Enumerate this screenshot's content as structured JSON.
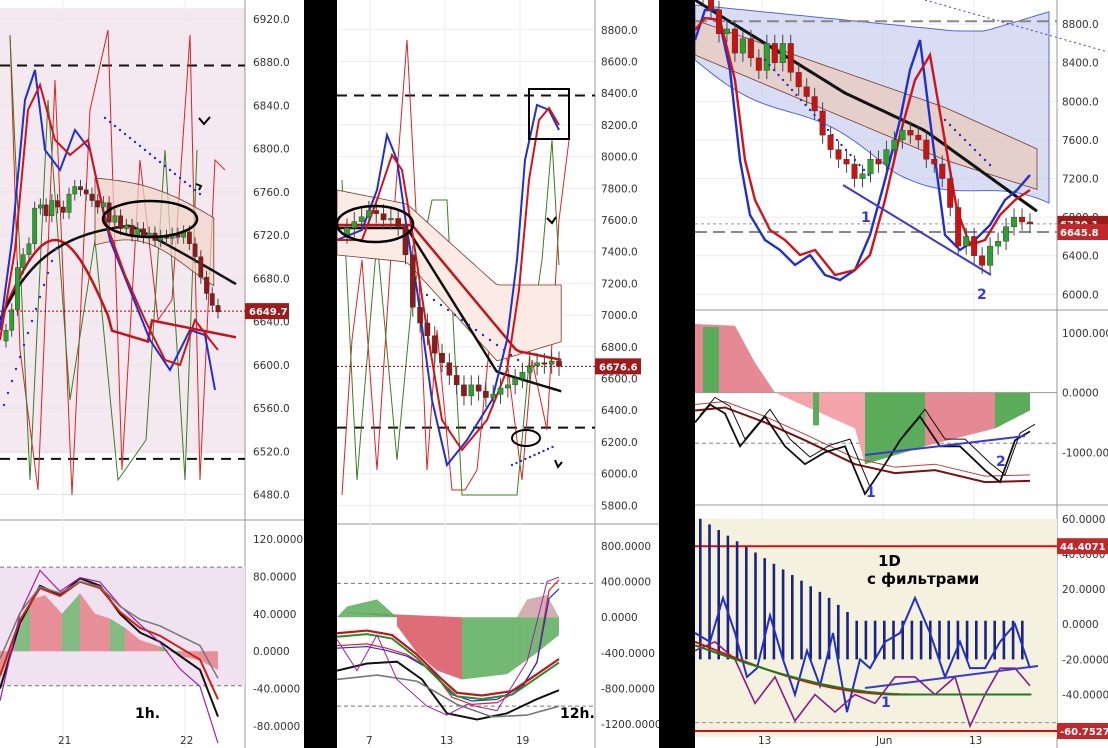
{
  "chart_data": [
    {
      "type": "line",
      "subtitle": "1h.",
      "price_axis": {
        "ticks": [
          6920.0,
          6880.0,
          6840.0,
          6800.0,
          6760.0,
          6720.0,
          6680.0,
          6640.0,
          6600.0,
          6560.0,
          6520.0,
          6480.0
        ],
        "tick_labels": [
          "6920.0",
          "6880.0",
          "6840.0",
          "6800.0",
          "6760.0",
          "6720.0",
          "6680.0",
          "6640.0",
          "6600.0",
          "6560.0",
          "6520.0",
          "6480.0"
        ],
        "ylim": [
          6462,
          6932
        ]
      },
      "current_price": 6649.7,
      "current_price_label": "6649.7",
      "osc_axis": {
        "ticks": [
          120,
          80,
          40,
          0,
          -40,
          -80
        ],
        "tick_labels": [
          "120.0000",
          "80.0000",
          "40.0000",
          "0.0000",
          "-40.0000",
          "-80.0000"
        ],
        "ylim": [
          -95,
          135
        ]
      },
      "x_labels": [
        "21",
        "22"
      ],
      "hlines": [
        6877,
        6513
      ],
      "candles": [
        6632,
        6651,
        6690,
        6702,
        6712,
        6745,
        6748,
        6738,
        6752,
        6746,
        6741,
        6758,
        6765,
        6762,
        6758,
        6752,
        6746,
        6750,
        6732,
        6738,
        6726,
        6729,
        6720,
        6726,
        6718,
        6722,
        6715,
        6719,
        6717,
        6721,
        6718,
        6723,
        6712,
        6700,
        6681,
        6666,
        6655,
        6649
      ],
      "colors": {
        "up": "#2ea02e",
        "down": "#8b1a1a",
        "bg": "#f4e8f1"
      }
    },
    {
      "type": "line",
      "subtitle": "12h.",
      "price_axis": {
        "ticks": [
          8800.0,
          8600.0,
          8400.0,
          8200.0,
          8000.0,
          7800.0,
          7600.0,
          7400.0,
          7200.0,
          7000.0,
          6800.0,
          6600.0,
          6400.0,
          6200.0,
          6000.0,
          5800.0
        ],
        "tick_labels": [
          "8800.0",
          "8600.0",
          "8400.0",
          "8200.0",
          "8000.0",
          "7800.0",
          "7600.0",
          "7400.0",
          "7200.0",
          "7000.0",
          "6800.0",
          "6600.0",
          "6400.0",
          "6200.0",
          "6000.0",
          "5800.0"
        ],
        "ylim": [
          5720,
          8950
        ]
      },
      "current_price": 6676.6,
      "current_price_label": "6676.6",
      "osc_axis": {
        "ticks": [
          800,
          400,
          0,
          -400,
          -800,
          -1200
        ],
        "tick_labels": [
          "800.0000",
          "400.0000",
          "0.0000",
          "-400.0000",
          "-800.0000",
          "-1200.0000"
        ],
        "ylim": [
          -1380,
          980
        ]
      },
      "x_labels": [
        "7",
        "13",
        "19"
      ],
      "hlines": [
        8385,
        6290
      ],
      "candles": [
        7550,
        7590,
        7620,
        7660,
        7640,
        7600,
        7610,
        7560,
        7380,
        7050,
        6950,
        6870,
        6760,
        6700,
        6620,
        6560,
        6490,
        6560,
        6520,
        6480,
        6500,
        6540,
        6560,
        6600,
        6640,
        6680,
        6700,
        6690,
        6710,
        6676
      ],
      "colors": {
        "up": "#2ea02e",
        "down": "#8b1a1a",
        "bg": "#fbebe4"
      }
    },
    {
      "type": "line",
      "subtitle": "1D\nс фильтрами",
      "price_axis": {
        "ticks": [
          8800.0,
          8400.0,
          8000.0,
          7600.0,
          7200.0,
          6800.0,
          6400.0,
          6000.0
        ],
        "tick_labels": [
          "8800.0",
          "8400.0",
          "8000.0",
          "7600.0",
          "7200.0",
          "6800.0",
          "6400.0",
          "6000.0"
        ],
        "ylim": [
          5900,
          9050
        ]
      },
      "current_price": 6730.1,
      "current_price_label": "6730.1",
      "secondary_price": 6645.8,
      "secondary_price_label": "6645.8",
      "macd_axis": {
        "ticks": [
          1000,
          0,
          -1000
        ],
        "tick_labels": [
          "1000.0000",
          "0.0000",
          "-1000.0000"
        ],
        "ylim": [
          -1800,
          1300
        ]
      },
      "osc_axis": {
        "ticks": [
          60,
          40,
          20,
          0,
          -20,
          -40,
          -60
        ],
        "tick_labels": [
          "60.0000",
          "40.0000",
          "20.0000",
          "0.0000",
          "-20.0000",
          "-40.0000",
          "-60.0000"
        ],
        "ylim": [
          -67,
          65
        ]
      },
      "osc_levels": [
        44.4071,
        -60.7527
      ],
      "osc_level_labels": [
        "44.4071",
        "-60.7527"
      ],
      "x_labels": [
        "13",
        "Jun",
        "13"
      ],
      "annotations": [
        "1",
        "2",
        "1",
        "2",
        "1"
      ],
      "candles": [
        9100,
        8950,
        8700,
        8750,
        8500,
        8650,
        8450,
        8320,
        8600,
        8400,
        8600,
        8300,
        8150,
        8050,
        7900,
        7650,
        7500,
        7400,
        7350,
        7200,
        7250,
        7400,
        7350,
        7500,
        7600,
        7700,
        7650,
        7600,
        7400,
        7350,
        7200,
        6900,
        6500,
        6600,
        6400,
        6300,
        6500,
        6550,
        6700,
        6800,
        6750,
        6730
      ],
      "colors": {
        "up": "#2ea02e",
        "down": "#cc1111",
        "band": "#c7cff0"
      }
    }
  ]
}
